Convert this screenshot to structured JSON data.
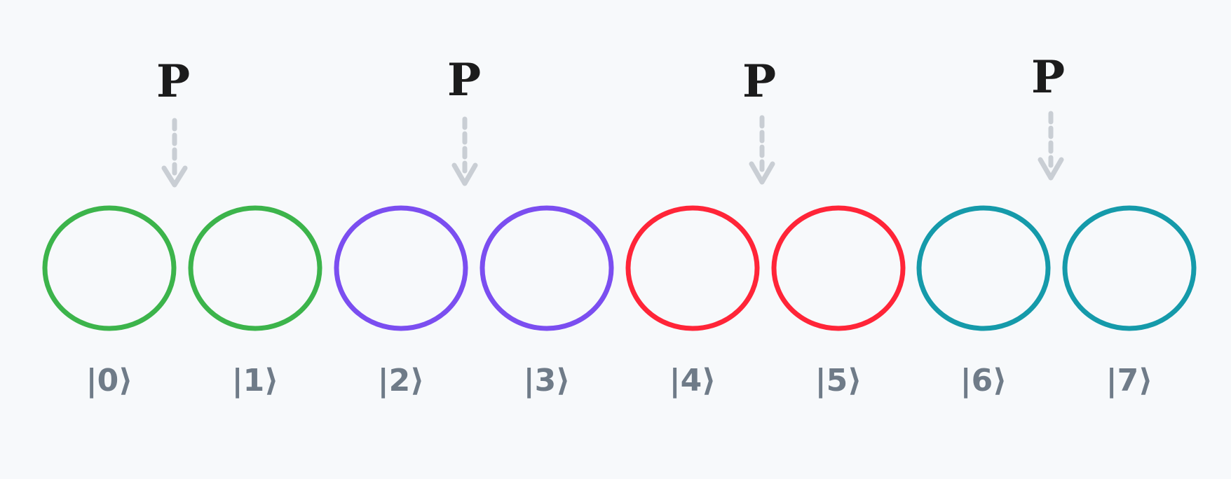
{
  "pulse_label": "P",
  "qubits": [
    {
      "label": "|0⟩",
      "color": "#3cb44b"
    },
    {
      "label": "|1⟩",
      "color": "#3cb44b"
    },
    {
      "label": "|2⟩",
      "color": "#7b4ef0"
    },
    {
      "label": "|3⟩",
      "color": "#7b4ef0"
    },
    {
      "label": "|4⟩",
      "color": "#ff2538"
    },
    {
      "label": "|5⟩",
      "color": "#ff2538"
    },
    {
      "label": "|6⟩",
      "color": "#159aaa"
    },
    {
      "label": "|7⟩",
      "color": "#159aaa"
    }
  ],
  "pulses": [
    {
      "label": "P"
    },
    {
      "label": "P"
    },
    {
      "label": "P"
    },
    {
      "label": "P"
    }
  ]
}
